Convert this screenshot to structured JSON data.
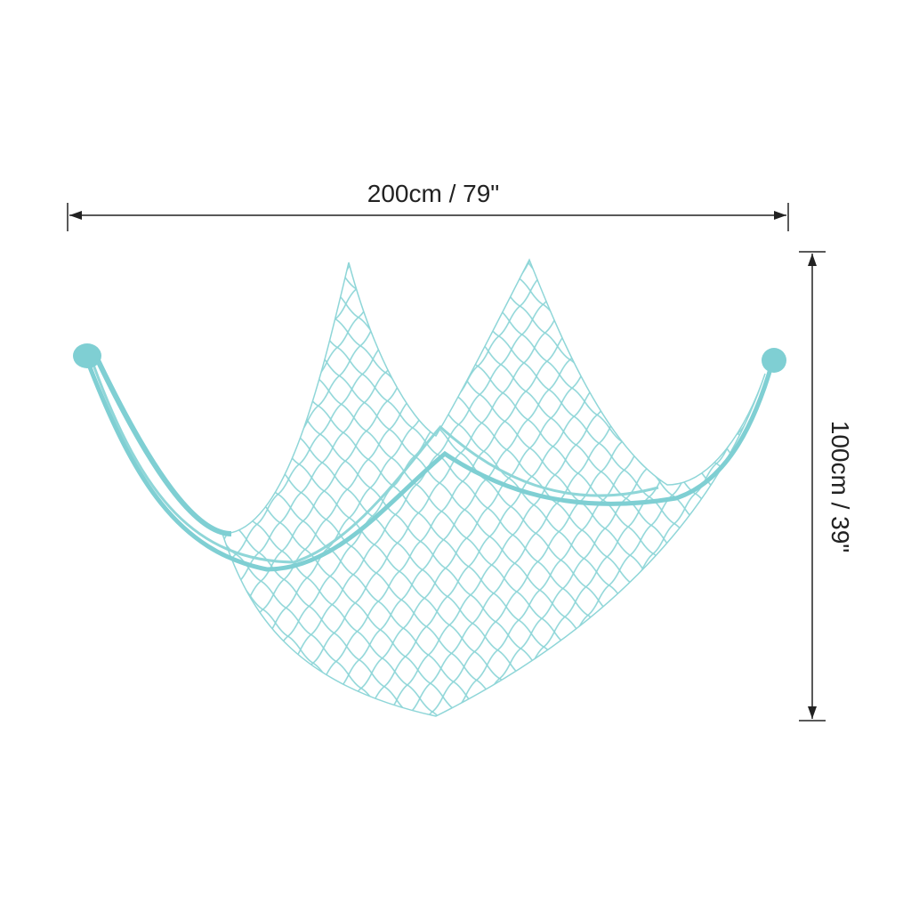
{
  "dimensions": {
    "width": {
      "label": "200cm / 79\""
    },
    "height": {
      "label": "100cm / 39\""
    }
  }
}
